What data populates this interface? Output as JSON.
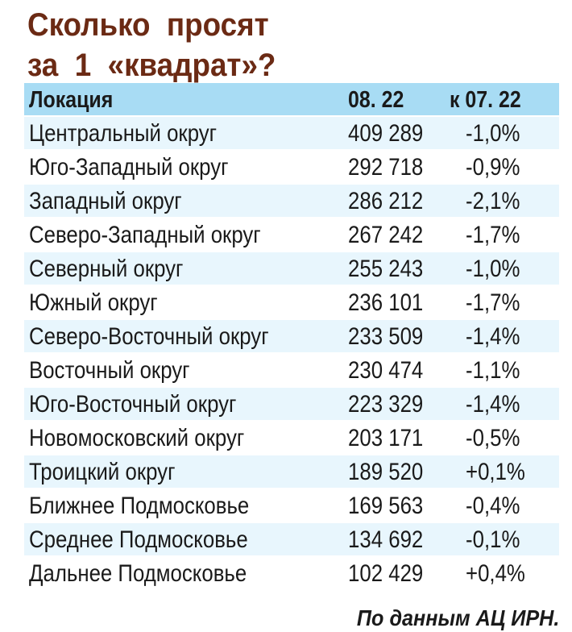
{
  "title": {
    "line1": "Сколько  просят",
    "line2": "за  1  «квадрат»?"
  },
  "table": {
    "headers": [
      "Локация",
      "08. 22",
      "к 07. 22"
    ],
    "rows": [
      [
        "Центральный округ",
        "409 289",
        "-1,0%"
      ],
      [
        "Юго-Западный округ",
        "292 718",
        "-0,9%"
      ],
      [
        "Западный округ",
        "286 212",
        "-2,1%"
      ],
      [
        "Северо-Западный округ",
        "267 242",
        "-1,7%"
      ],
      [
        "Северный округ",
        "255 243",
        "-1,0%"
      ],
      [
        "Южный округ",
        "236 101",
        "-1,7%"
      ],
      [
        "Северо-Восточный округ",
        "233 509",
        "-1,4%"
      ],
      [
        "Восточный округ",
        "230 474",
        "-1,1%"
      ],
      [
        "Юго-Восточный округ",
        "223 329",
        "-1,4%"
      ],
      [
        "Новомосковский округ",
        "203 171",
        "-0,5%"
      ],
      [
        "Троицкий округ",
        "189 520",
        "+0,1%"
      ],
      [
        "Ближнее Подмосковье",
        "169 563",
        "-0,4%"
      ],
      [
        "Среднее Подмосковье",
        "134 692",
        "-0,1%"
      ],
      [
        "Дальнее Подмосковье",
        "102 429",
        "+0,4%"
      ]
    ]
  },
  "source": "По данным АЦ ИРН.",
  "colors": {
    "title": "#6b2a14",
    "header_bg": "#a8dcf4",
    "alt_row_bg": "#e8f6fd",
    "text": "#1a1a1a"
  }
}
